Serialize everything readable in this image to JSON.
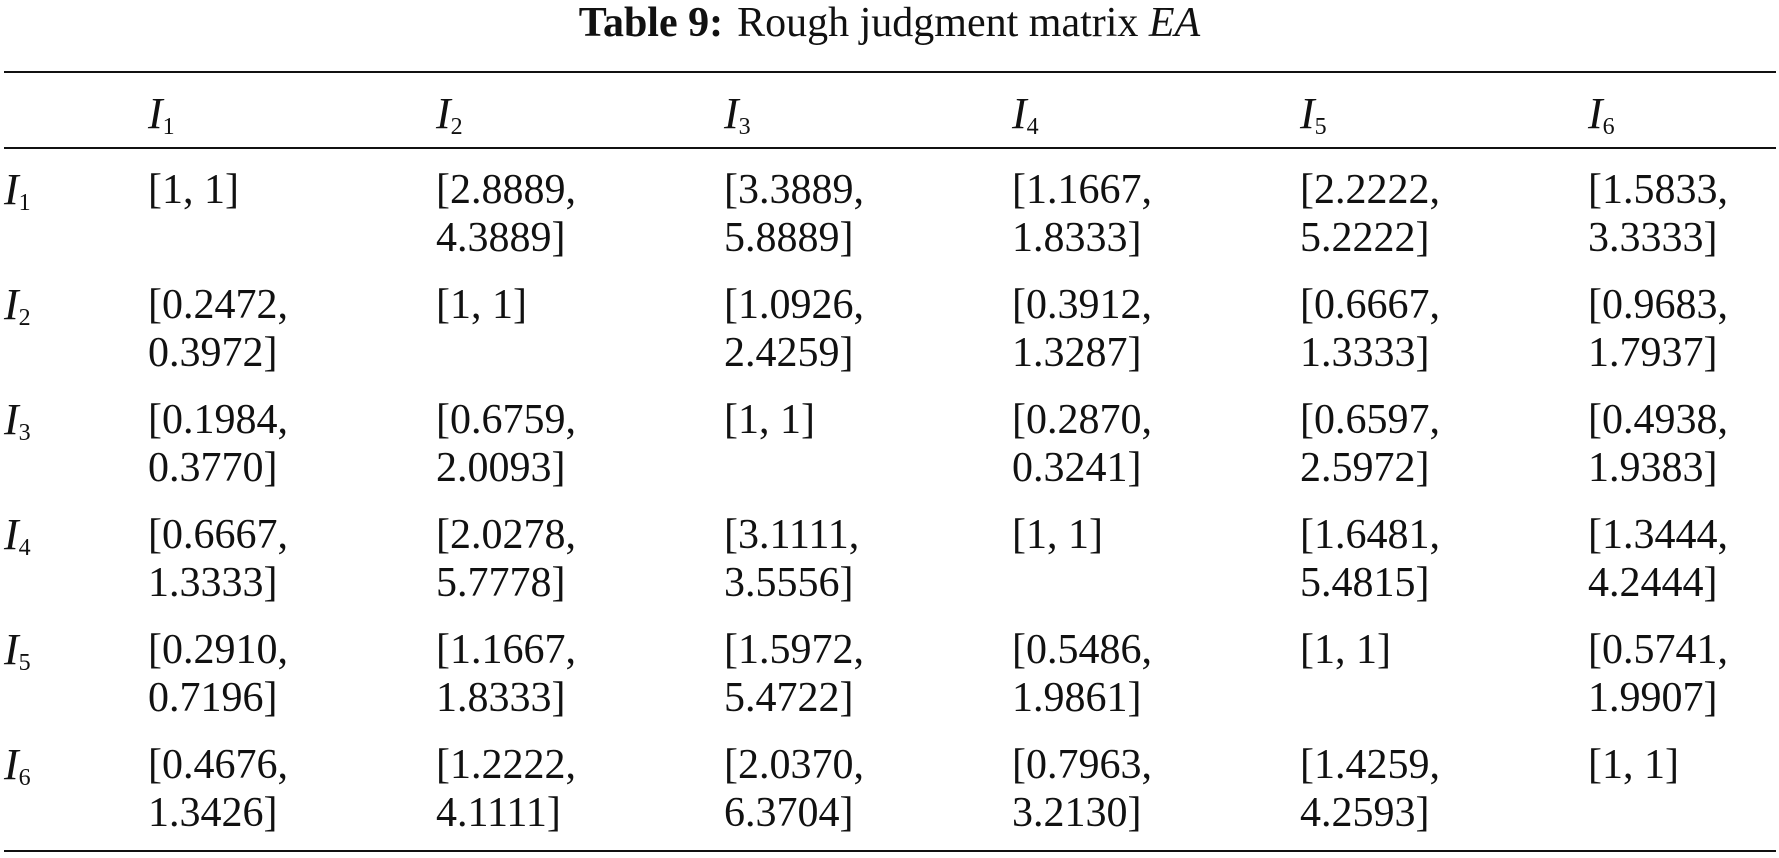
{
  "caption": {
    "label": "Table 9:",
    "text": "Rough judgment matrix",
    "variable": "EA"
  },
  "table": {
    "columns": [
      {
        "symbol": "I",
        "subscript": "1"
      },
      {
        "symbol": "I",
        "subscript": "2"
      },
      {
        "symbol": "I",
        "subscript": "3"
      },
      {
        "symbol": "I",
        "subscript": "4"
      },
      {
        "symbol": "I",
        "subscript": "5"
      },
      {
        "symbol": "I",
        "subscript": "6"
      }
    ],
    "rows": [
      {
        "header": {
          "symbol": "I",
          "subscript": "1"
        },
        "cells": [
          "[1, 1]",
          "[2.8889,\n4.3889]",
          "[3.3889,\n5.8889]",
          "[1.1667,\n1.8333]",
          "[2.2222,\n5.2222]",
          "[1.5833,\n3.3333]"
        ]
      },
      {
        "header": {
          "symbol": "I",
          "subscript": "2"
        },
        "cells": [
          "[0.2472,\n0.3972]",
          "[1, 1]",
          "[1.0926,\n2.4259]",
          "[0.3912,\n1.3287]",
          "[0.6667,\n1.3333]",
          "[0.9683,\n1.7937]"
        ]
      },
      {
        "header": {
          "symbol": "I",
          "subscript": "3"
        },
        "cells": [
          "[0.1984,\n0.3770]",
          "[0.6759,\n2.0093]",
          "[1, 1]",
          "[0.2870,\n0.3241]",
          "[0.6597,\n2.5972]",
          "[0.4938,\n1.9383]"
        ]
      },
      {
        "header": {
          "symbol": "I",
          "subscript": "4"
        },
        "cells": [
          "[0.6667,\n1.3333]",
          "[2.0278,\n5.7778]",
          "[3.1111,\n3.5556]",
          "[1, 1]",
          "[1.6481,\n5.4815]",
          "[1.3444,\n4.2444]"
        ]
      },
      {
        "header": {
          "symbol": "I",
          "subscript": "5"
        },
        "cells": [
          "[0.2910,\n0.7196]",
          "[1.1667,\n1.8333]",
          "[1.5972,\n5.4722]",
          "[0.5486,\n1.9861]",
          "[1, 1]",
          "[0.5741,\n1.9907]"
        ]
      },
      {
        "header": {
          "symbol": "I",
          "subscript": "6"
        },
        "cells": [
          "[0.4676,\n1.3426]",
          "[1.2222,\n4.1111]",
          "[2.0370,\n6.3704]",
          "[0.7963,\n3.2130]",
          "[1.4259,\n4.2593]",
          "[1, 1]"
        ]
      }
    ]
  }
}
